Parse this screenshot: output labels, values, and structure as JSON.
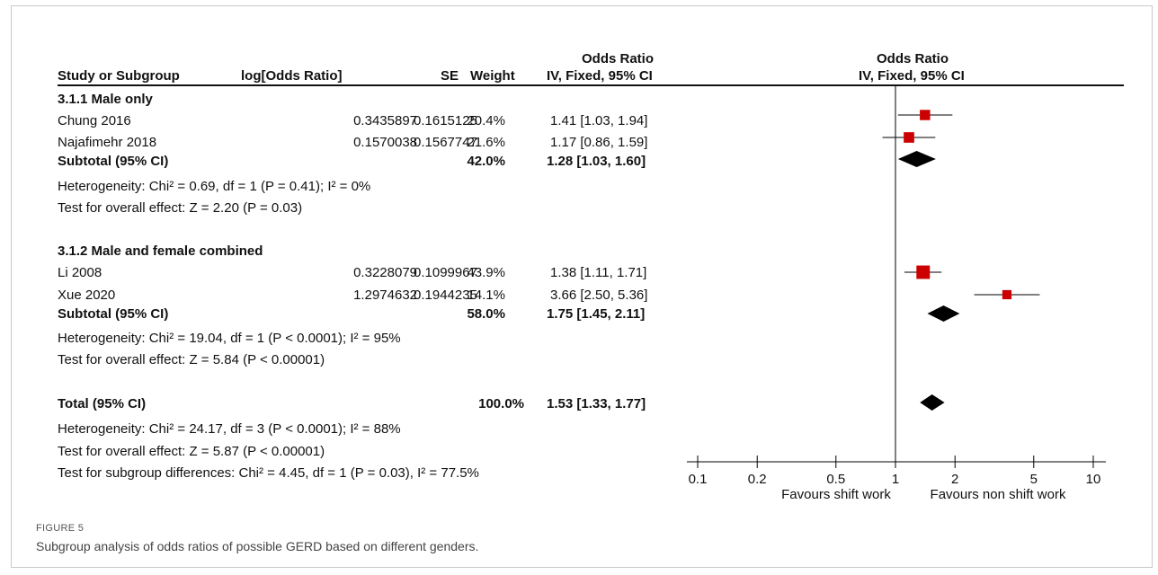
{
  "header": {
    "study_col": "Study or Subgroup",
    "log_col": "log[Odds Ratio]",
    "se_col": "SE",
    "weight_col": "Weight",
    "or_col_line1": "Odds Ratio",
    "or_col_line2": "IV, Fixed, 95% CI",
    "plot_line1": "Odds Ratio",
    "plot_line2": "IV, Fixed, 95% CI"
  },
  "groups": [
    {
      "title": "3.1.1 Male only",
      "studies": [
        {
          "name": "Chung 2016",
          "log": "0.3435897",
          "se": "0.1615125",
          "weight": "20.4%",
          "ci": "1.41 [1.03, 1.94]"
        },
        {
          "name": "Najafimehr 2018",
          "log": "0.1570038",
          "se": "0.1567747",
          "weight": "21.6%",
          "ci": "1.17 [0.86, 1.59]"
        }
      ],
      "subtotal": {
        "label": "Subtotal (95% CI)",
        "weight": "42.0%",
        "ci": "1.28 [1.03, 1.60]"
      },
      "heterogeneity": "Heterogeneity: Chi² = 0.69, df = 1 (P = 0.41); I² = 0%",
      "overall": "Test for overall effect: Z = 2.20 (P = 0.03)"
    },
    {
      "title": "3.1.2 Male and female combined",
      "studies": [
        {
          "name": "Li 2008",
          "log": "0.3228079",
          "se": "0.1099967",
          "weight": "43.9%",
          "ci": "1.38 [1.11, 1.71]"
        },
        {
          "name": "Xue 2020",
          "log": "1.2974632",
          "se": "0.1944235",
          "weight": "14.1%",
          "ci": "3.66 [2.50, 5.36]"
        }
      ],
      "subtotal": {
        "label": "Subtotal (95% CI)",
        "weight": "58.0%",
        "ci": "1.75 [1.45, 2.11]"
      },
      "heterogeneity": "Heterogeneity: Chi² = 19.04, df = 1 (P < 0.0001); I² = 95%",
      "overall": "Test for overall effect: Z = 5.84 (P < 0.00001)"
    }
  ],
  "total": {
    "label": "Total (95% CI)",
    "weight": "100.0%",
    "ci": "1.53 [1.33, 1.77]",
    "heterogeneity": "Heterogeneity: Chi² = 24.17, df = 3 (P < 0.0001); I² = 88%",
    "overall": "Test for overall effect: Z = 5.87 (P < 0.00001)",
    "subgroup_diff": "Test for subgroup differences: Chi² = 4.45, df = 1 (P = 0.03), I² = 77.5%"
  },
  "axis": {
    "ticks": [
      "0.1",
      "0.2",
      "0.5",
      "1",
      "2",
      "5",
      "10"
    ],
    "left_label": "Favours shift work",
    "right_label": "Favours non shift work"
  },
  "caption": {
    "label": "FIGURE 5",
    "text": "Subgroup analysis of odds ratios of possible GERD based on different genders."
  },
  "colors": {
    "study_marker": "#cc0000",
    "diamond": "#000000",
    "line": "#000000"
  },
  "chart_data": {
    "type": "forest",
    "scale": "log",
    "xlim": [
      0.1,
      10
    ],
    "null_line": 1,
    "studies": [
      {
        "name": "Chung 2016",
        "or": 1.41,
        "lo": 1.03,
        "hi": 1.94,
        "weight": 20.4
      },
      {
        "name": "Najafimehr 2018",
        "or": 1.17,
        "lo": 0.86,
        "hi": 1.59,
        "weight": 21.6
      },
      {
        "name": "Li 2008",
        "or": 1.38,
        "lo": 1.11,
        "hi": 1.71,
        "weight": 43.9
      },
      {
        "name": "Xue 2020",
        "or": 3.66,
        "lo": 2.5,
        "hi": 5.36,
        "weight": 14.1
      }
    ],
    "summaries": [
      {
        "name": "Subtotal male only",
        "or": 1.28,
        "lo": 1.03,
        "hi": 1.6
      },
      {
        "name": "Subtotal male and female combined",
        "or": 1.75,
        "lo": 1.45,
        "hi": 2.11
      },
      {
        "name": "Total",
        "or": 1.53,
        "lo": 1.33,
        "hi": 1.77
      }
    ]
  }
}
